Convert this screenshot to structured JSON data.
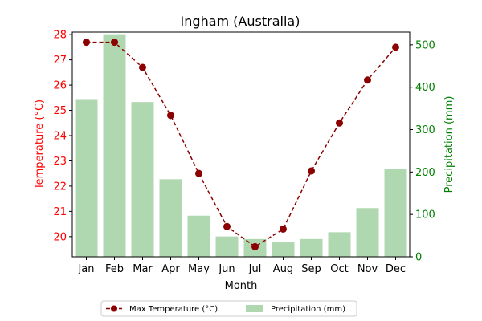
{
  "chart_data": {
    "type": "bar",
    "title": "Ingham (Australia)",
    "xlabel": "Month",
    "categories": [
      "Jan",
      "Feb",
      "Mar",
      "Apr",
      "May",
      "Jun",
      "Jul",
      "Aug",
      "Sep",
      "Oct",
      "Nov",
      "Dec"
    ],
    "left_axis": {
      "label": "Temperature (°C)",
      "ylim": [
        19.2,
        28.1
      ],
      "ticks": [
        20,
        21,
        22,
        23,
        24,
        25,
        26,
        27,
        28
      ],
      "color": "#ff0000"
    },
    "right_axis": {
      "label": "Precipitation (mm)",
      "ylim": [
        0,
        530
      ],
      "ticks": [
        0,
        100,
        200,
        300,
        400,
        500
      ],
      "color": "#008000"
    },
    "series": [
      {
        "name": "Max Temperature (°C)",
        "type": "line",
        "axis": "left",
        "color": "#8b0000",
        "style": "dashed",
        "marker": "circle",
        "values": [
          27.7,
          27.7,
          26.7,
          24.8,
          22.5,
          20.4,
          19.6,
          20.3,
          22.6,
          24.5,
          26.2,
          27.5
        ]
      },
      {
        "name": "Precipitation (mm)",
        "type": "bar",
        "axis": "right",
        "color": "#b0d8b0",
        "values": [
          372,
          525,
          365,
          183,
          97,
          48,
          42,
          34,
          42,
          58,
          115,
          207
        ]
      }
    ],
    "legend_position": "bottom-center",
    "grid": false
  }
}
